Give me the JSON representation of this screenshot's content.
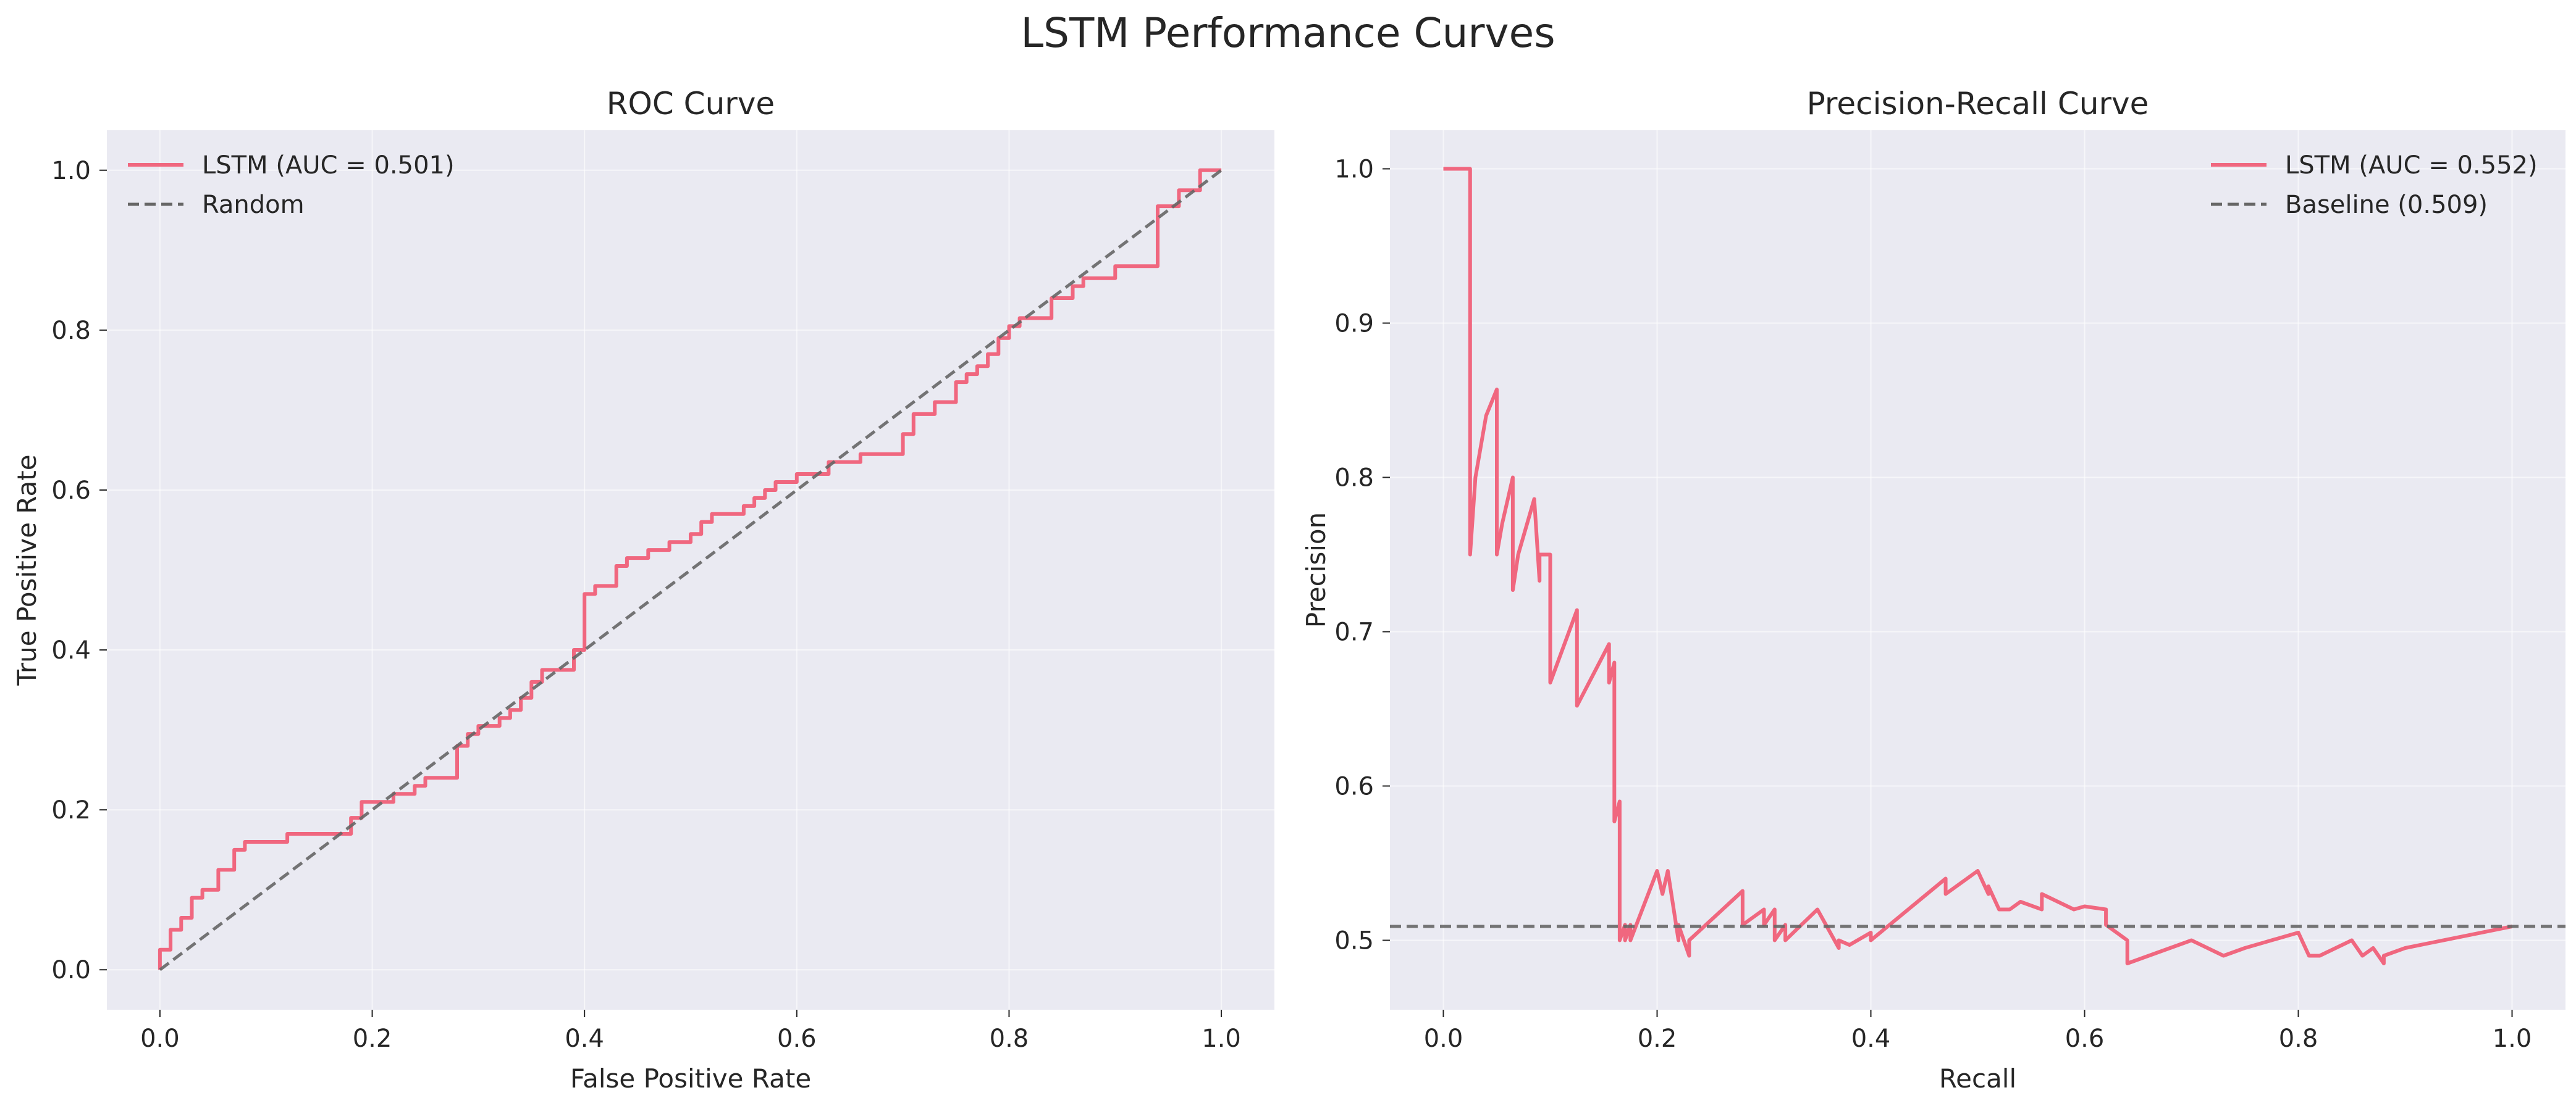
{
  "figure": {
    "title": "LSTM Performance Curves"
  },
  "colors": {
    "model": "#f0677f",
    "reference": "#666666",
    "axes_bg": "#eaeaf2",
    "grid": "#ffffff",
    "text": "#262626"
  },
  "chart_data": [
    {
      "type": "line",
      "title": "ROC Curve",
      "xlabel": "False Positive Rate",
      "ylabel": "True Positive Rate",
      "xlim": [
        -0.05,
        1.05
      ],
      "ylim": [
        -0.05,
        1.05
      ],
      "xticks": [
        0.0,
        0.2,
        0.4,
        0.6,
        0.8,
        1.0
      ],
      "yticks": [
        0.0,
        0.2,
        0.4,
        0.6,
        0.8,
        1.0
      ],
      "xtick_labels": [
        "0.0",
        "0.2",
        "0.4",
        "0.6",
        "0.8",
        "1.0"
      ],
      "ytick_labels": [
        "0.0",
        "0.2",
        "0.4",
        "0.6",
        "0.8",
        "1.0"
      ],
      "grid": true,
      "legend_position": "upper-left",
      "series": [
        {
          "name": "LSTM (AUC = 0.501)",
          "style": "solid",
          "color": "#f0677f",
          "step": true,
          "x": [
            0.0,
            0.0,
            0.01,
            0.01,
            0.02,
            0.02,
            0.03,
            0.03,
            0.04,
            0.04,
            0.055,
            0.055,
            0.07,
            0.07,
            0.08,
            0.08,
            0.12,
            0.12,
            0.18,
            0.18,
            0.19,
            0.19,
            0.22,
            0.22,
            0.24,
            0.24,
            0.25,
            0.25,
            0.28,
            0.28,
            0.29,
            0.29,
            0.3,
            0.3,
            0.32,
            0.32,
            0.33,
            0.33,
            0.34,
            0.34,
            0.35,
            0.35,
            0.36,
            0.36,
            0.39,
            0.39,
            0.4,
            0.4,
            0.41,
            0.41,
            0.43,
            0.43,
            0.44,
            0.44,
            0.46,
            0.46,
            0.48,
            0.48,
            0.5,
            0.5,
            0.51,
            0.51,
            0.52,
            0.52,
            0.55,
            0.55,
            0.56,
            0.56,
            0.57,
            0.57,
            0.58,
            0.58,
            0.6,
            0.6,
            0.63,
            0.63,
            0.66,
            0.66,
            0.7,
            0.7,
            0.71,
            0.71,
            0.73,
            0.73,
            0.75,
            0.75,
            0.76,
            0.76,
            0.77,
            0.77,
            0.78,
            0.78,
            0.79,
            0.79,
            0.8,
            0.8,
            0.81,
            0.81,
            0.84,
            0.84,
            0.86,
            0.86,
            0.87,
            0.87,
            0.9,
            0.9,
            0.94,
            0.94,
            0.96,
            0.96,
            0.98,
            0.98,
            1.0,
            1.0
          ],
          "y": [
            0.0,
            0.025,
            0.025,
            0.05,
            0.05,
            0.065,
            0.065,
            0.09,
            0.09,
            0.1,
            0.1,
            0.125,
            0.125,
            0.15,
            0.15,
            0.16,
            0.16,
            0.17,
            0.17,
            0.19,
            0.19,
            0.21,
            0.21,
            0.22,
            0.22,
            0.23,
            0.23,
            0.24,
            0.24,
            0.28,
            0.28,
            0.295,
            0.295,
            0.305,
            0.305,
            0.315,
            0.315,
            0.325,
            0.325,
            0.34,
            0.34,
            0.36,
            0.36,
            0.375,
            0.375,
            0.4,
            0.4,
            0.47,
            0.47,
            0.48,
            0.48,
            0.505,
            0.505,
            0.515,
            0.515,
            0.525,
            0.525,
            0.535,
            0.535,
            0.545,
            0.545,
            0.56,
            0.56,
            0.57,
            0.57,
            0.58,
            0.58,
            0.59,
            0.59,
            0.6,
            0.6,
            0.61,
            0.61,
            0.62,
            0.62,
            0.635,
            0.635,
            0.645,
            0.645,
            0.67,
            0.67,
            0.695,
            0.695,
            0.71,
            0.71,
            0.735,
            0.735,
            0.745,
            0.745,
            0.755,
            0.755,
            0.77,
            0.77,
            0.79,
            0.79,
            0.805,
            0.805,
            0.815,
            0.815,
            0.84,
            0.84,
            0.855,
            0.855,
            0.865,
            0.865,
            0.88,
            0.88,
            0.955,
            0.955,
            0.975,
            0.975,
            1.0,
            1.0,
            1.0
          ]
        },
        {
          "name": "Random",
          "style": "dashed",
          "color": "#666666",
          "x": [
            0.0,
            1.0
          ],
          "y": [
            0.0,
            1.0
          ]
        }
      ]
    },
    {
      "type": "line",
      "title": "Precision-Recall Curve",
      "xlabel": "Recall",
      "ylabel": "Precision",
      "xlim": [
        -0.05,
        1.05
      ],
      "ylim": [
        0.455,
        1.025
      ],
      "xticks": [
        0.0,
        0.2,
        0.4,
        0.6,
        0.8,
        1.0
      ],
      "yticks": [
        0.5,
        0.6,
        0.7,
        0.8,
        0.9,
        1.0
      ],
      "xtick_labels": [
        "0.0",
        "0.2",
        "0.4",
        "0.6",
        "0.8",
        "1.0"
      ],
      "ytick_labels": [
        "0.5",
        "0.6",
        "0.7",
        "0.8",
        "0.9",
        "1.0"
      ],
      "grid": true,
      "legend_position": "upper-right",
      "series": [
        {
          "name": "LSTM (AUC = 0.552)",
          "style": "solid",
          "color": "#f0677f",
          "x": [
            0.0,
            0.025,
            0.025,
            0.03,
            0.04,
            0.05,
            0.05,
            0.055,
            0.065,
            0.065,
            0.07,
            0.085,
            0.09,
            0.09,
            0.1,
            0.1,
            0.125,
            0.125,
            0.155,
            0.155,
            0.16,
            0.16,
            0.165,
            0.165,
            0.17,
            0.17,
            0.175,
            0.175,
            0.2,
            0.205,
            0.21,
            0.22,
            0.22,
            0.23,
            0.23,
            0.28,
            0.28,
            0.3,
            0.3,
            0.31,
            0.31,
            0.32,
            0.32,
            0.35,
            0.37,
            0.37,
            0.38,
            0.4,
            0.4,
            0.47,
            0.47,
            0.5,
            0.51,
            0.51,
            0.52,
            0.53,
            0.54,
            0.56,
            0.56,
            0.59,
            0.6,
            0.62,
            0.62,
            0.64,
            0.64,
            0.66,
            0.68,
            0.7,
            0.73,
            0.75,
            0.8,
            0.81,
            0.82,
            0.85,
            0.86,
            0.87,
            0.88,
            0.88,
            0.9,
            1.0
          ],
          "y": [
            1.0,
            1.0,
            0.75,
            0.8,
            0.84,
            0.857,
            0.75,
            0.77,
            0.8,
            0.727,
            0.75,
            0.786,
            0.733,
            0.75,
            0.75,
            0.667,
            0.714,
            0.652,
            0.692,
            0.667,
            0.68,
            0.577,
            0.59,
            0.5,
            0.51,
            0.5,
            0.51,
            0.5,
            0.545,
            0.53,
            0.545,
            0.5,
            0.51,
            0.49,
            0.5,
            0.532,
            0.51,
            0.52,
            0.51,
            0.52,
            0.5,
            0.51,
            0.5,
            0.52,
            0.495,
            0.5,
            0.497,
            0.505,
            0.5,
            0.54,
            0.53,
            0.545,
            0.53,
            0.535,
            0.52,
            0.52,
            0.525,
            0.52,
            0.53,
            0.52,
            0.522,
            0.52,
            0.51,
            0.5,
            0.485,
            0.49,
            0.495,
            0.5,
            0.49,
            0.495,
            0.505,
            0.49,
            0.49,
            0.5,
            0.49,
            0.495,
            0.485,
            0.49,
            0.495,
            0.509
          ]
        },
        {
          "name": "Baseline (0.509)",
          "style": "dashed",
          "color": "#666666",
          "x": [
            -0.05,
            1.05
          ],
          "y": [
            0.509,
            0.509
          ]
        }
      ]
    }
  ]
}
